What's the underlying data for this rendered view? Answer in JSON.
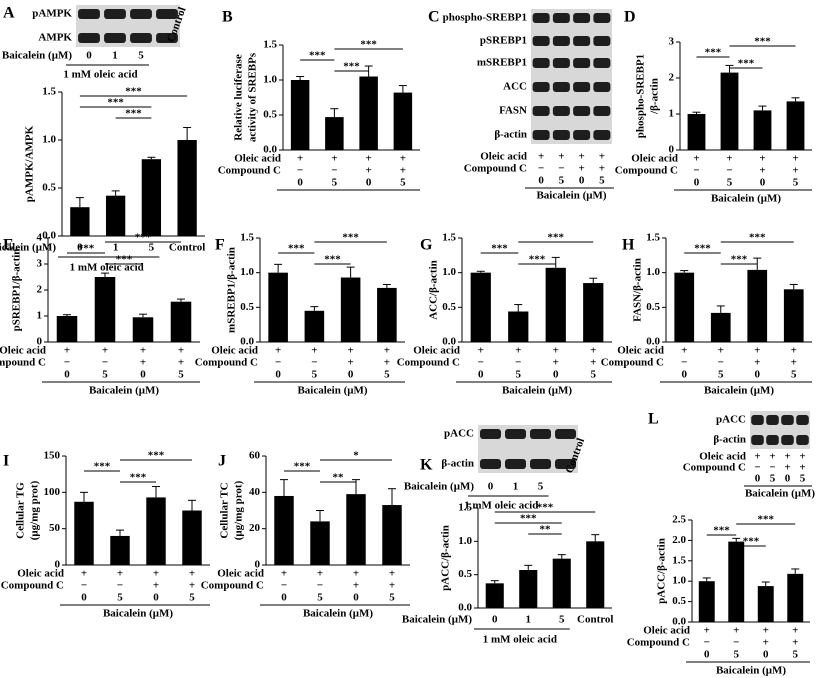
{
  "chart_data": [
    {
      "panel": "A",
      "type": "bar",
      "ylabel": "pAMPK/AMPK",
      "categories": [
        "0",
        "1",
        "5",
        "Control"
      ],
      "values": [
        0.3,
        0.42,
        0.8,
        1.0
      ],
      "errors": [
        0.1,
        0.05,
        0.02,
        0.13
      ],
      "color": "#000000",
      "ylim": [
        0,
        1.5
      ],
      "yticks": [
        {
          "value": 0,
          "label": "0.0"
        },
        0.5,
        {
          "value": 1,
          "label": "1.0"
        },
        1.5
      ],
      "xlabel": "Baicalein (μM)",
      "xnote": "1 mM oleic acid",
      "brackets": [
        {
          "label": "***",
          "between": [
            0,
            3
          ]
        },
        {
          "label": "***",
          "between": [
            0,
            2
          ]
        },
        {
          "label": "***",
          "between": [
            1,
            2
          ]
        }
      ],
      "blot": {
        "rows": [
          "pAMPK",
          "AMPK"
        ],
        "lanes": [
          "0",
          "1",
          "5",
          "Control"
        ],
        "xlabel": "Baicalein (μM)",
        "xnote": "1 mM oleic acid"
      }
    },
    {
      "panel": "B",
      "type": "bar",
      "ylabel": [
        "Relative luciferase",
        "activity of SREBPs"
      ],
      "conditions": [
        {
          "label": "Oleic acid",
          "values": [
            "+",
            "+",
            "+",
            "+"
          ]
        },
        {
          "label": "Compound C",
          "values": [
            "−",
            "−",
            "+",
            "+"
          ]
        }
      ],
      "categories": [
        "0",
        "5",
        "0",
        "5"
      ],
      "values": [
        1.0,
        0.47,
        1.05,
        0.82
      ],
      "errors": [
        0.05,
        0.12,
        0.15,
        0.1
      ],
      "color": "#000000",
      "ylim": [
        0,
        1.5
      ],
      "yticks": [
        {
          "value": 0,
          "label": "0.0"
        },
        0.5,
        {
          "value": 1,
          "label": "1.0"
        },
        1.5
      ],
      "brackets": [
        {
          "label": "***",
          "between": [
            1,
            3
          ]
        },
        {
          "label": "***",
          "between": [
            0,
            1
          ]
        },
        {
          "label": "***",
          "between": [
            1,
            2
          ]
        }
      ]
    },
    {
      "panel": "D",
      "type": "bar",
      "ylabel": [
        "phospho-SREBP1",
        "/β-actin"
      ],
      "conditions": [
        {
          "label": "Oleic acid",
          "values": [
            "+",
            "+",
            "+",
            "+"
          ]
        },
        {
          "label": "Compound C",
          "values": [
            "−",
            "−",
            "+",
            "+"
          ]
        }
      ],
      "categories": [
        "0",
        "5",
        "0",
        "5"
      ],
      "xlabel": "Baicalein (μM)",
      "values": [
        1.0,
        2.15,
        1.1,
        1.35
      ],
      "errors": [
        0.05,
        0.2,
        0.12,
        0.1
      ],
      "color": "#000000",
      "ylim": [
        0,
        3
      ],
      "yticks": [
        0,
        1,
        2,
        3
      ],
      "brackets": [
        {
          "label": "***",
          "between": [
            1,
            3
          ]
        },
        {
          "label": "***",
          "between": [
            0,
            1
          ]
        },
        {
          "label": "***",
          "between": [
            1,
            2
          ]
        }
      ]
    },
    {
      "panel": "E",
      "type": "bar",
      "ylabel": "pSREBP1/β-actin",
      "conditions": [
        {
          "label": "Oleic acid",
          "values": [
            "+",
            "+",
            "+",
            "+"
          ]
        },
        {
          "label": "Compound C",
          "values": [
            "−",
            "−",
            "+",
            "+"
          ]
        }
      ],
      "categories": [
        "0",
        "5",
        "0",
        "5"
      ],
      "xlabel": "Baicalein (μM)",
      "values": [
        1.0,
        2.5,
        0.95,
        1.55
      ],
      "errors": [
        0.05,
        0.15,
        0.12,
        0.1
      ],
      "color": "#000000",
      "ylim": [
        0,
        4
      ],
      "yticks": [
        0,
        1,
        2,
        3,
        4
      ],
      "brackets": [
        {
          "label": "***",
          "between": [
            1,
            3
          ]
        },
        {
          "label": "***",
          "between": [
            0,
            1
          ]
        },
        {
          "label": "***",
          "between": [
            1,
            2
          ]
        }
      ]
    },
    {
      "panel": "F",
      "type": "bar",
      "ylabel": "mSREBP1/β-actin",
      "conditions": [
        {
          "label": "Oleic acid",
          "values": [
            "+",
            "+",
            "+",
            "+"
          ]
        },
        {
          "label": "Compound C",
          "values": [
            "−",
            "−",
            "+",
            "+"
          ]
        }
      ],
      "categories": [
        "0",
        "5",
        "0",
        "5"
      ],
      "xlabel": "Baicalein (μM)",
      "values": [
        1.0,
        0.45,
        0.93,
        0.78
      ],
      "errors": [
        0.12,
        0.06,
        0.15,
        0.05
      ],
      "color": "#000000",
      "ylim": [
        0,
        1.5
      ],
      "yticks": [
        {
          "value": 0,
          "label": "0.0"
        },
        0.5,
        {
          "value": 1,
          "label": "1.0"
        },
        1.5
      ],
      "brackets": [
        {
          "label": "***",
          "between": [
            1,
            3
          ]
        },
        {
          "label": "***",
          "between": [
            0,
            1
          ]
        },
        {
          "label": "***",
          "between": [
            1,
            2
          ]
        }
      ]
    },
    {
      "panel": "G",
      "type": "bar",
      "ylabel": "ACC/β-actin",
      "conditions": [
        {
          "label": "Oleic acid",
          "values": [
            "+",
            "+",
            "+",
            "+"
          ]
        },
        {
          "label": "Compound C",
          "values": [
            "−",
            "−",
            "+",
            "+"
          ]
        }
      ],
      "categories": [
        "0",
        "5",
        "0",
        "5"
      ],
      "xlabel": "Baicalein (μM)",
      "values": [
        1.0,
        0.44,
        1.07,
        0.85
      ],
      "errors": [
        0.02,
        0.1,
        0.15,
        0.07
      ],
      "color": "#000000",
      "ylim": [
        0,
        1.5
      ],
      "yticks": [
        {
          "value": 0,
          "label": "0.0"
        },
        0.5,
        {
          "value": 1,
          "label": "1.0"
        },
        1.5
      ],
      "brackets": [
        {
          "label": "***",
          "between": [
            1,
            3
          ]
        },
        {
          "label": "***",
          "between": [
            0,
            1
          ]
        },
        {
          "label": "***",
          "between": [
            1,
            2
          ]
        }
      ]
    },
    {
      "panel": "H",
      "type": "bar",
      "ylabel": "FASN/β-actin",
      "conditions": [
        {
          "label": "Oleic acid",
          "values": [
            "+",
            "+",
            "+",
            "+"
          ]
        },
        {
          "label": "Compound C",
          "values": [
            "−",
            "−",
            "+",
            "+"
          ]
        }
      ],
      "categories": [
        "0",
        "5",
        "0",
        "5"
      ],
      "xlabel": "Baicalein (μM)",
      "values": [
        1.0,
        0.42,
        1.04,
        0.76
      ],
      "errors": [
        0.03,
        0.1,
        0.17,
        0.07
      ],
      "color": "#000000",
      "ylim": [
        0,
        1.5
      ],
      "yticks": [
        {
          "value": 0,
          "label": "0.0"
        },
        0.5,
        {
          "value": 1,
          "label": "1.0"
        },
        1.5
      ],
      "brackets": [
        {
          "label": "***",
          "between": [
            1,
            3
          ]
        },
        {
          "label": "***",
          "between": [
            0,
            1
          ]
        },
        {
          "label": "***",
          "between": [
            1,
            2
          ]
        }
      ]
    },
    {
      "panel": "I",
      "type": "bar",
      "ylabel": [
        "Cellular TG",
        "(μg/mg prot)"
      ],
      "conditions": [
        {
          "label": "Oleic acid",
          "values": [
            "+",
            "+",
            "+",
            "+"
          ]
        },
        {
          "label": "Compound C",
          "values": [
            "−",
            "−",
            "+",
            "+"
          ]
        }
      ],
      "categories": [
        "0",
        "5",
        "0",
        "5"
      ],
      "xlabel": "Baicalein (μM)",
      "values": [
        87,
        40,
        93,
        75
      ],
      "errors": [
        13,
        8,
        15,
        14
      ],
      "color": "#000000",
      "ylim": [
        0,
        150
      ],
      "yticks": [
        0,
        50,
        100,
        150
      ],
      "brackets": [
        {
          "label": "***",
          "between": [
            1,
            3
          ]
        },
        {
          "label": "***",
          "between": [
            0,
            1
          ]
        },
        {
          "label": "***",
          "between": [
            1,
            2
          ]
        }
      ]
    },
    {
      "panel": "J",
      "type": "bar",
      "ylabel": [
        "Cellular TC",
        "(μg/mg prot)"
      ],
      "conditions": [
        {
          "label": "Oleic acid",
          "values": [
            "+",
            "+",
            "+",
            "+"
          ]
        },
        {
          "label": "Compound C",
          "values": [
            "−",
            "−",
            "+",
            "+"
          ]
        }
      ],
      "categories": [
        "0",
        "5",
        "0",
        "5"
      ],
      "xlabel": "Baicalein (μM)",
      "values": [
        38,
        24,
        39,
        33
      ],
      "errors": [
        9,
        6,
        8,
        9
      ],
      "color": "#000000",
      "ylim": [
        0,
        60
      ],
      "yticks": [
        0,
        20,
        40,
        60
      ],
      "brackets": [
        {
          "label": "*",
          "between": [
            1,
            3
          ]
        },
        {
          "label": "***",
          "between": [
            0,
            1
          ]
        },
        {
          "label": "**",
          "between": [
            1,
            2
          ]
        }
      ]
    },
    {
      "panel": "K",
      "type": "bar",
      "ylabel": "pACC/β-actin",
      "categories": [
        "0",
        "1",
        "5",
        "Control"
      ],
      "values": [
        0.37,
        0.57,
        0.74,
        1.0
      ],
      "errors": [
        0.04,
        0.07,
        0.06,
        0.1
      ],
      "color": "#000000",
      "ylim": [
        0,
        1.5
      ],
      "yticks": [
        {
          "value": 0,
          "label": "0.0"
        },
        0.5,
        {
          "value": 1,
          "label": "1.0"
        },
        1.5
      ],
      "xlabel": "Baicalein (μM)",
      "xnote": "1 mM oleic acid",
      "brackets": [
        {
          "label": "***",
          "between": [
            0,
            3
          ]
        },
        {
          "label": "***",
          "between": [
            0,
            2
          ]
        },
        {
          "label": "**",
          "between": [
            1,
            2
          ]
        }
      ],
      "blot": {
        "rows": [
          "pACC",
          "β-actin"
        ],
        "lanes": [
          "0",
          "1",
          "5",
          "Control"
        ],
        "xlabel": "Baicalein (μM)",
        "xnote": "1 mM oleic acid"
      }
    },
    {
      "panel": "L",
      "type": "bar",
      "ylabel": "pACC/β-actin",
      "conditions": [
        {
          "label": "Oleic acid",
          "values": [
            "+",
            "+",
            "+",
            "+"
          ]
        },
        {
          "label": "Compound C",
          "values": [
            "−",
            "−",
            "+",
            "+"
          ]
        }
      ],
      "categories": [
        "0",
        "5",
        "0",
        "5"
      ],
      "xlabel": "Baicalein (μM)",
      "values": [
        1.0,
        1.97,
        0.88,
        1.18
      ],
      "errors": [
        0.08,
        0.08,
        0.1,
        0.12
      ],
      "color": "#000000",
      "ylim": [
        0,
        2.5
      ],
      "yticks": [
        {
          "value": 0,
          "label": "0.0"
        },
        0.5,
        {
          "value": 1,
          "label": "1.0"
        },
        1.5,
        {
          "value": 2,
          "label": "2.0"
        },
        2.5
      ],
      "brackets": [
        {
          "label": "***",
          "between": [
            1,
            3
          ]
        },
        {
          "label": "***",
          "between": [
            0,
            1
          ]
        },
        {
          "label": "***",
          "between": [
            1,
            2
          ]
        }
      ],
      "blot": {
        "rows": [
          "pACC",
          "β-actin"
        ],
        "conditions": [
          {
            "label": "Oleic acid",
            "values": [
              "+",
              "+",
              "+",
              "+"
            ]
          },
          {
            "label": "Compound C",
            "values": [
              "−",
              "−",
              "+",
              "+"
            ]
          }
        ],
        "lanes": [
          "0",
          "5",
          "0",
          "5"
        ],
        "xlabel": "Baicalein (μM)"
      }
    }
  ],
  "blot_panel": {
    "panel": "C",
    "rows": [
      "phospho-SREBP1",
      "pSREBP1",
      "mSREBP1",
      "ACC",
      "FASN",
      "β-actin"
    ],
    "conditions": [
      {
        "label": "Oleic acid",
        "values": [
          "+",
          "+",
          "+",
          "+"
        ]
      },
      {
        "label": "Compound C",
        "values": [
          "−",
          "−",
          "+",
          "+"
        ]
      }
    ],
    "lanes": [
      "0",
      "5",
      "0",
      "5"
    ],
    "xlabel": "Baicalein (μM)"
  }
}
